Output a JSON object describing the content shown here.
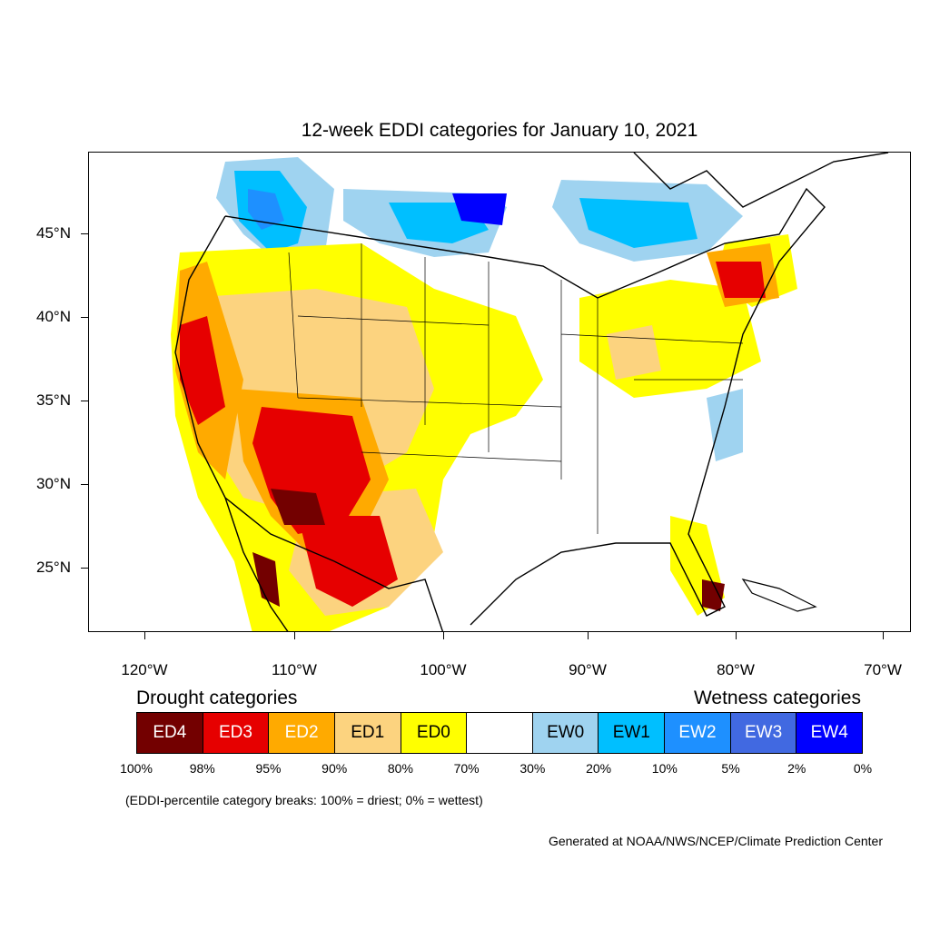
{
  "title": "12-week EDDI categories for January 10, 2021",
  "lat_labels": [
    "45°N",
    "40°N",
    "35°N",
    "30°N",
    "25°N"
  ],
  "lon_labels": [
    "120°W",
    "110°W",
    "100°W",
    "90°W",
    "80°W",
    "70°W"
  ],
  "legend": {
    "drought_heading": "Drought categories",
    "wetness_heading": "Wetness categories",
    "categories": [
      {
        "label": "ED4",
        "color": "#730000",
        "text_color": "#ffffff"
      },
      {
        "label": "ED3",
        "color": "#e60000",
        "text_color": "#ffffff"
      },
      {
        "label": "ED2",
        "color": "#ffaa00",
        "text_color": "#ffffff"
      },
      {
        "label": "ED1",
        "color": "#fcd37f",
        "text_color": "#000000"
      },
      {
        "label": "ED0",
        "color": "#ffff00",
        "text_color": "#000000"
      },
      {
        "label": "",
        "color": "#ffffff",
        "text_color": "#000000"
      },
      {
        "label": "EW0",
        "color": "#9fd3f0",
        "text_color": "#000000"
      },
      {
        "label": "EW1",
        "color": "#00bfff",
        "text_color": "#000000"
      },
      {
        "label": "EW2",
        "color": "#1e90ff",
        "text_color": "#ffffff"
      },
      {
        "label": "EW3",
        "color": "#4169e1",
        "text_color": "#ffffff"
      },
      {
        "label": "EW4",
        "color": "#0000ff",
        "text_color": "#ffffff"
      }
    ],
    "breaks": [
      "100%",
      "98%",
      "95%",
      "90%",
      "80%",
      "70%",
      "30%",
      "20%",
      "10%",
      "5%",
      "2%",
      "0%"
    ]
  },
  "note": "(EDDI-percentile category breaks: 100% = driest; 0% = wettest)",
  "credit": "Generated at NOAA/NWS/NCEP/Climate Prediction Center"
}
